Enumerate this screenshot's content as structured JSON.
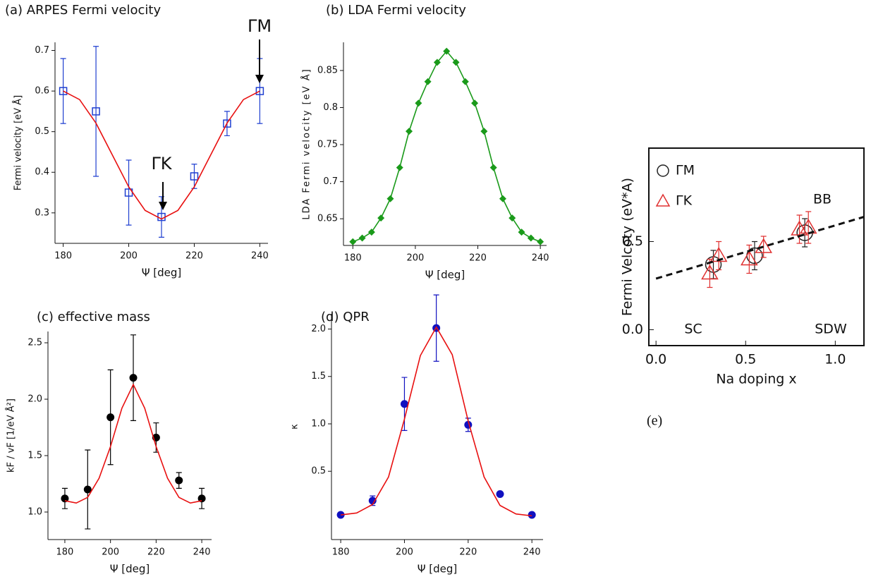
{
  "chart_data": [
    {
      "type": "scatter",
      "title": "(a) ARPES Fermi velocity",
      "xlabel": "Ψ  [deg]",
      "ylabel": "Fermi velocity  [eV Å]",
      "xlim": [
        177.5,
        242.5
      ],
      "ylim": [
        0.225,
        0.72
      ],
      "xticks": [
        180,
        200,
        220,
        240
      ],
      "yticks": [
        0.3,
        0.4,
        0.5,
        0.6,
        0.7
      ],
      "annotations": [
        "ΓK",
        "ΓM"
      ],
      "series": [
        {
          "color": "#1f3fd0",
          "marker": "square-open",
          "x": [
            180,
            190,
            200,
            210,
            220,
            230,
            240
          ],
          "values": [
            0.6,
            0.55,
            0.35,
            0.29,
            0.39,
            0.52,
            0.6
          ],
          "errors": [
            0.08,
            0.16,
            0.08,
            0.05,
            0.03,
            0.03,
            0.08
          ]
        },
        {
          "color": "#e81010",
          "line_style": "solid",
          "x": [
            180,
            185,
            190,
            195,
            200,
            205,
            210,
            215,
            220,
            225,
            230,
            235,
            240
          ],
          "values": [
            0.6,
            0.579,
            0.521,
            0.4425,
            0.364,
            0.306,
            0.285,
            0.306,
            0.364,
            0.4425,
            0.521,
            0.579,
            0.6
          ]
        }
      ]
    },
    {
      "type": "line",
      "title": "(b) LDA Fermi velocity",
      "xlabel": "Ψ  [deg]",
      "ylabel": "LDA Fermi velocity [eV Å]",
      "xlim": [
        177,
        242
      ],
      "ylim": [
        0.614,
        0.888
      ],
      "xticks": [
        180,
        200,
        220,
        240
      ],
      "yticks": [
        0.65,
        0.7,
        0.75,
        0.8,
        0.85
      ],
      "series": [
        {
          "color": "#1a9a1a",
          "marker": "diamond",
          "line_style": "solid",
          "x": [
            180,
            183,
            186,
            189,
            192,
            195,
            198,
            201,
            204,
            207,
            210,
            213,
            216,
            219,
            222,
            225,
            228,
            231,
            234,
            237,
            240
          ],
          "values": [
            0.619,
            0.624,
            0.632,
            0.651,
            0.677,
            0.719,
            0.768,
            0.806,
            0.835,
            0.861,
            0.876,
            0.861,
            0.835,
            0.806,
            0.768,
            0.719,
            0.677,
            0.651,
            0.632,
            0.624,
            0.619
          ]
        }
      ]
    },
    {
      "type": "scatter",
      "title": "(c) effective mass",
      "xlabel": "Ψ  [deg]",
      "ylabel": "kF / vF  [1/eV Å²]",
      "xlim": [
        172.6,
        244.3
      ],
      "ylim": [
        0.756,
        2.6
      ],
      "xticks": [
        180,
        200,
        220,
        240
      ],
      "yticks": [
        {
          "value": 1,
          "label": "1.0"
        },
        1.5,
        {
          "value": 2,
          "label": "2.0"
        },
        2.5
      ],
      "series": [
        {
          "color": "#000000",
          "marker": "circle",
          "x": [
            180,
            190,
            200,
            210,
            220,
            230,
            240
          ],
          "values": [
            1.12,
            1.2,
            1.84,
            2.19,
            1.66,
            1.28,
            1.12
          ],
          "errors": [
            0.09,
            0.35,
            0.42,
            0.38,
            0.13,
            0.07,
            0.09
          ]
        },
        {
          "color": "#e81010",
          "line_style": "solid",
          "x": [
            180,
            185,
            190,
            195,
            200,
            205,
            210,
            215,
            220,
            225,
            230,
            235,
            240
          ],
          "values": [
            1.1,
            1.08,
            1.13,
            1.3,
            1.58,
            1.92,
            2.13,
            1.92,
            1.58,
            1.3,
            1.13,
            1.08,
            1.1
          ]
        }
      ]
    },
    {
      "type": "scatter",
      "title": "(d) QPR",
      "xlabel": "Ψ  [deg]",
      "ylabel": "κ",
      "xlim": [
        177.1,
        243.5
      ],
      "ylim": [
        -0.22,
        2.16
      ],
      "xticks": [
        180,
        200,
        220,
        240
      ],
      "yticks": [
        0.5,
        {
          "value": 1,
          "label": "1.0"
        },
        1.5,
        {
          "value": 2,
          "label": "2.0"
        }
      ],
      "series": [
        {
          "color": "#1010c0",
          "marker": "circle",
          "x": [
            180,
            190,
            200,
            210,
            220,
            230,
            240
          ],
          "values": [
            0.04,
            0.19,
            1.21,
            2.01,
            0.99,
            0.26,
            0.04
          ],
          "errors": [
            0,
            0.05,
            0.28,
            0.35,
            0.07,
            0,
            0
          ]
        },
        {
          "color": "#e81010",
          "line_style": "solid",
          "x": [
            180,
            185,
            190,
            195,
            200,
            205,
            210,
            215,
            220,
            225,
            230,
            235,
            240
          ],
          "values": [
            0.04,
            0.06,
            0.15,
            0.44,
            1.05,
            1.72,
            2.02,
            1.73,
            1.03,
            0.44,
            0.14,
            0.05,
            0.03
          ]
        }
      ]
    },
    {
      "type": "scatter",
      "title": "(e)",
      "xlabel": "Na doping x",
      "ylabel": "Fermi Velcoty (eV*A)",
      "frame": true,
      "legend": "upper left",
      "xlim": [
        -0.04,
        1.16
      ],
      "ylim": [
        -0.09,
        1.03
      ],
      "xticks": [
        {
          "value": 0,
          "label": "0.0"
        },
        0.5,
        {
          "value": 1,
          "label": "1.0"
        }
      ],
      "yticks": [
        {
          "value": 0,
          "label": "0.0"
        },
        0.5
      ],
      "annotations": [
        "SC",
        "SDW",
        "BB"
      ],
      "series": [
        {
          "name": "ΓM",
          "color": "#222222",
          "marker": "circle-open",
          "x": [
            0.32,
            0.55,
            0.83
          ],
          "values": [
            0.37,
            0.42,
            0.55
          ],
          "errors": [
            0.08,
            0.08,
            0.08
          ]
        },
        {
          "name": "ΓK",
          "color": "#e03030",
          "marker": "triangle-open",
          "x": [
            0.3,
            0.35,
            0.52,
            0.6,
            0.8,
            0.85
          ],
          "values": [
            0.32,
            0.42,
            0.4,
            0.47,
            0.57,
            0.58
          ],
          "errors": [
            0.08,
            0.08,
            0.08,
            0.06,
            0.08,
            0.09
          ]
        },
        {
          "color": "#111111",
          "line_style": "dashed",
          "x": [
            0,
            1.16
          ],
          "values": [
            0.29,
            0.64
          ]
        }
      ]
    }
  ]
}
